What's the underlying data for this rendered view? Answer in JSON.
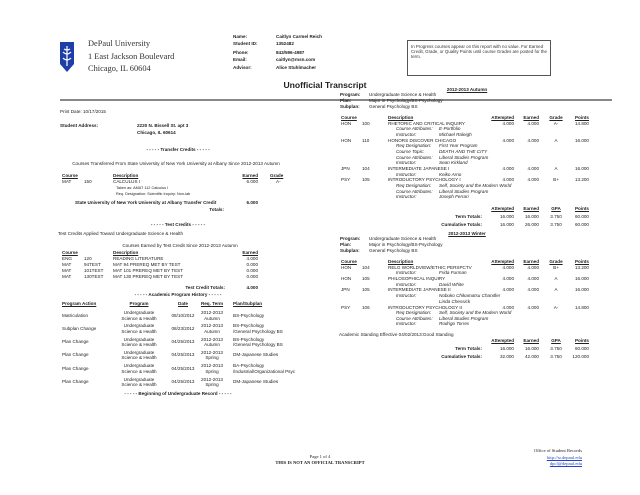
{
  "header": {
    "university": "DePaul University",
    "address1": "1 East Jackson Boulevard",
    "address2": "Chicago, IL 60604",
    "title": "Unofficial Transcript",
    "notice": "In Progress courses appear on this report with no value. For Earned Credit, Grade, or Quality Points until course Grades are posted for the term.",
    "logo_color": "#1f3fa8"
  },
  "student": {
    "name_label": "Name:",
    "name": "Caitlyn Carmel Reich",
    "id_label": "Student ID:",
    "id": "1352482",
    "phone_label": "Phone:",
    "phone": "843/596-4987",
    "email_label": "Email:",
    "email": "caitlyn@msn.com",
    "advisor_label": "Advisor:",
    "advisor": "Alice Stuhlmacher",
    "print_date": "Print Date: 10/17/2015",
    "address_label": "Student Address:",
    "address1": "2220 N. Bissell St. apt 3",
    "address2": "Chicago, IL 60614"
  },
  "transfer": {
    "heading": "- - - - - Transfer Credits - - - - -",
    "subheading": "Courses Transferred From State University of New York University at Albany Since 2012-2013 Autumn",
    "columns": [
      "Course",
      "Description",
      "Earned",
      "Grade"
    ],
    "courses": [
      {
        "subject": "MAT",
        "number": "150",
        "description": "CALCULUS I",
        "earned": "6.000",
        "grade": "A-",
        "notes": [
          "Taken as: AMAT 112 Calculus I",
          "Req. Designation: Scientific Inquiry: Non-lab"
        ]
      }
    ],
    "total_label": "State University of New York University at Albany Transfer Credit",
    "total_label2": "Totals:",
    "total": "6.000"
  },
  "test": {
    "heading": "- - - - - Test Credits - - - - -",
    "applied": "Test Credits Applied Toward Undergraduate Science & Health",
    "subheading": "Courses Earned by Test Credit Since 2012-2013 Autumn",
    "columns": [
      "Course",
      "Description",
      "Earned"
    ],
    "courses": [
      {
        "subject": "ENG",
        "number": "120",
        "description": "READING LITERATURE",
        "earned": "4.000"
      },
      {
        "subject": "MAT",
        "number": "94TEST",
        "description": "MAT 94 PREREQ MET BY TEST",
        "earned": "0.000"
      },
      {
        "subject": "MAT",
        "number": "101TEST",
        "description": "MAT 101 PREREQ MET BY TEST",
        "earned": "0.000"
      },
      {
        "subject": "MAT",
        "number": "130TEST",
        "description": "MAT 130 PREREQ MET BY TEST",
        "earned": "0.000"
      }
    ],
    "total_label": "Test Credit Totals:",
    "total": "4.000"
  },
  "history": {
    "heading": "- - - - - Academic Program History - - - - -",
    "columns": [
      "Program Action",
      "Program",
      "Date",
      "Req. Term",
      "Plan/Subplan"
    ],
    "rows": [
      {
        "action": "Matriculation",
        "program": [
          "Undergraduate",
          "Science & Health"
        ],
        "date": "08/10/2012",
        "term": [
          "2012-2013",
          "Autumn"
        ],
        "plan": [
          "BS-Psychology"
        ]
      },
      {
        "action": "Subplan Change",
        "program": [
          "Undergraduate",
          "Science & Health"
        ],
        "date": "08/23/2012",
        "term": [
          "2012-2013",
          "Autumn"
        ],
        "plan": [
          "BS-Psychology",
          "/General Psychology BS"
        ]
      },
      {
        "action": "Plan Change",
        "program": [
          "Undergraduate",
          "Science & Health"
        ],
        "date": "04/25/2013",
        "term": [
          "2012-2013",
          "Autumn"
        ],
        "plan": [
          "BS-Psychology",
          "/General Psychology BS"
        ]
      },
      {
        "action": "Plan Change",
        "program": [
          "Undergraduate",
          "Science & Health"
        ],
        "date": "04/25/2013",
        "term": [
          "2012-2013",
          "Spring"
        ],
        "plan": [
          "DM-Japanese Studies"
        ]
      },
      {
        "action": "Plan Change",
        "program": [
          "Undergraduate",
          "Science & Health"
        ],
        "date": "04/25/2013",
        "term": [
          "2012-2013",
          "Spring"
        ],
        "plan": [
          "BA-Psychology",
          "/Industrial/Organizational Psyc"
        ]
      },
      {
        "action": "Plan Change",
        "program": [
          "Undergraduate",
          "Science & Health"
        ],
        "date": "04/25/2013",
        "term": [
          "2012-2013",
          "Spring"
        ],
        "plan": [
          "DM-Japanese Studies"
        ]
      }
    ],
    "record_heading": "- - - - - Beginning of Undergraduate Record - - - - -"
  },
  "terms": [
    {
      "name": "2012-2013 Autumn",
      "program_label": "Program:",
      "program": "Undergraduate Science & Health",
      "plan_label": "Plan:",
      "plan": "Major in Psychology/BS-Psychology",
      "subplan_label": "Subplan:",
      "subplan": "General Psychology BS",
      "columns": [
        "Course",
        "Description",
        "Attempted",
        "Earned",
        "Grade",
        "Points"
      ],
      "courses": [
        {
          "subject": "HON",
          "number": "100",
          "description": "RHETORIC AND CRITICAL INQUIRY",
          "attempted": "4.000",
          "earned": "4.000",
          "grade": "A-",
          "points": "14.800",
          "details": [
            {
              "label": "Course Attributes:",
              "value": "E-Portfolio"
            },
            {
              "label": "Instructor:",
              "value": "Michael Raleigh"
            }
          ]
        },
        {
          "subject": "HON",
          "number": "110",
          "description": "HONORS DISCOVER CHICAGO",
          "attempted": "4.000",
          "earned": "4.000",
          "grade": "A",
          "points": "16.000",
          "details": [
            {
              "label": "Req Designation:",
              "value": "First Year Program"
            },
            {
              "label": "Course Topic:",
              "value": "DEATH AND THE CITY"
            },
            {
              "label": "Course Attributes:",
              "value": "Liberal Studies Program"
            },
            {
              "label": "Instructor:",
              "value": "Sean Kirkland"
            }
          ]
        },
        {
          "subject": "JPN",
          "number": "104",
          "description": "INTERMEDIATE JAPANESE I",
          "attempted": "4.000",
          "earned": "4.000",
          "grade": "A",
          "points": "16.000",
          "details": [
            {
              "label": "Instructor:",
              "value": "Keiko Arno"
            }
          ]
        },
        {
          "subject": "PSY",
          "number": "105",
          "description": "INTRODUCTORY PSYCHOLOGY I",
          "attempted": "4.000",
          "earned": "4.000",
          "grade": "B+",
          "points": "13.200",
          "details": [
            {
              "label": "Req Designation:",
              "value": "Self, Society and the Modern World"
            },
            {
              "label": "Course Attributes:",
              "value": "Liberal Studies Program"
            },
            {
              "label": "Instructor:",
              "value": "Joseph Ferrari"
            }
          ]
        }
      ],
      "standing": "",
      "totals_columns": [
        "Attempted",
        "Earned",
        "GPA",
        "Points"
      ],
      "term_totals": {
        "label": "Term Totals:",
        "attempted": "16.000",
        "earned": "16.000",
        "gpa": "3.750",
        "points": "60.000"
      },
      "cumulative_totals": {
        "label": "Cumulative Totals:",
        "attempted": "16.000",
        "earned": "26.000",
        "gpa": "3.750",
        "points": "60.000"
      }
    },
    {
      "name": "2012-2013 Winter",
      "program_label": "Program:",
      "program": "Undergraduate Science & Health",
      "plan_label": "Plan:",
      "plan": "Major in Psychology/BS-Psychology",
      "subplan_label": "Subplan:",
      "subplan": "General Psychology BS",
      "columns": [
        "Course",
        "Description",
        "Attempted",
        "Earned",
        "Grade",
        "Points"
      ],
      "courses": [
        {
          "subject": "HON",
          "number": "104",
          "description": "RELG WORLDVIEW/ETHIC PERSPCTV",
          "attempted": "4.000",
          "earned": "4.000",
          "grade": "B+",
          "points": "13.200",
          "details": [
            {
              "label": "Instructor:",
              "value": "Frida Furman"
            }
          ]
        },
        {
          "subject": "HON",
          "number": "105",
          "description": "PHILOSOPHICAL INQUIRY",
          "attempted": "4.000",
          "earned": "4.000",
          "grade": "A",
          "points": "16.000",
          "details": [
            {
              "label": "Instructor:",
              "value": "David White"
            }
          ]
        },
        {
          "subject": "JPN",
          "number": "105",
          "description": "INTERMEDIATE JAPANESE II",
          "attempted": "4.000",
          "earned": "4.000",
          "grade": "A",
          "points": "16.000",
          "details": [
            {
              "label": "Instructor:",
              "value": "Nobuko Chikamatsu Chandler"
            },
            {
              "label": "",
              "value": "Linda Chessick"
            }
          ]
        },
        {
          "subject": "PSY",
          "number": "106",
          "description": "INTRODUCTORY PSYCHOLOGY II",
          "attempted": "4.000",
          "earned": "4.000",
          "grade": "A-",
          "points": "14.800",
          "details": [
            {
              "label": "Req Designation:",
              "value": "Self, Society and the Modern World"
            },
            {
              "label": "Course Attributes:",
              "value": "Liberal Studies Program"
            },
            {
              "label": "Instructor:",
              "value": "Rodrigo Torres"
            }
          ]
        }
      ],
      "standing": "Academic Standing Effective 04/02/2013:Good Standing",
      "totals_columns": [
        "Attempted",
        "Earned",
        "GPA",
        "Points"
      ],
      "term_totals": {
        "label": "Term Totals:",
        "attempted": "16.000",
        "earned": "16.000",
        "gpa": "3.750",
        "points": "60.000"
      },
      "cumulative_totals": {
        "label": "Cumulative Totals:",
        "attempted": "32.000",
        "earned": "42.000",
        "gpa": "3.750",
        "points": "120.000"
      }
    }
  ],
  "footer": {
    "page": "Page 1 of 4",
    "disclaimer": "THIS IS NOT AN OFFICIAL TRANSCRIPT",
    "office": "Office of Student Records",
    "link": "http://sr.depaul.edu",
    "email": "dpcl@depaul.edu"
  }
}
